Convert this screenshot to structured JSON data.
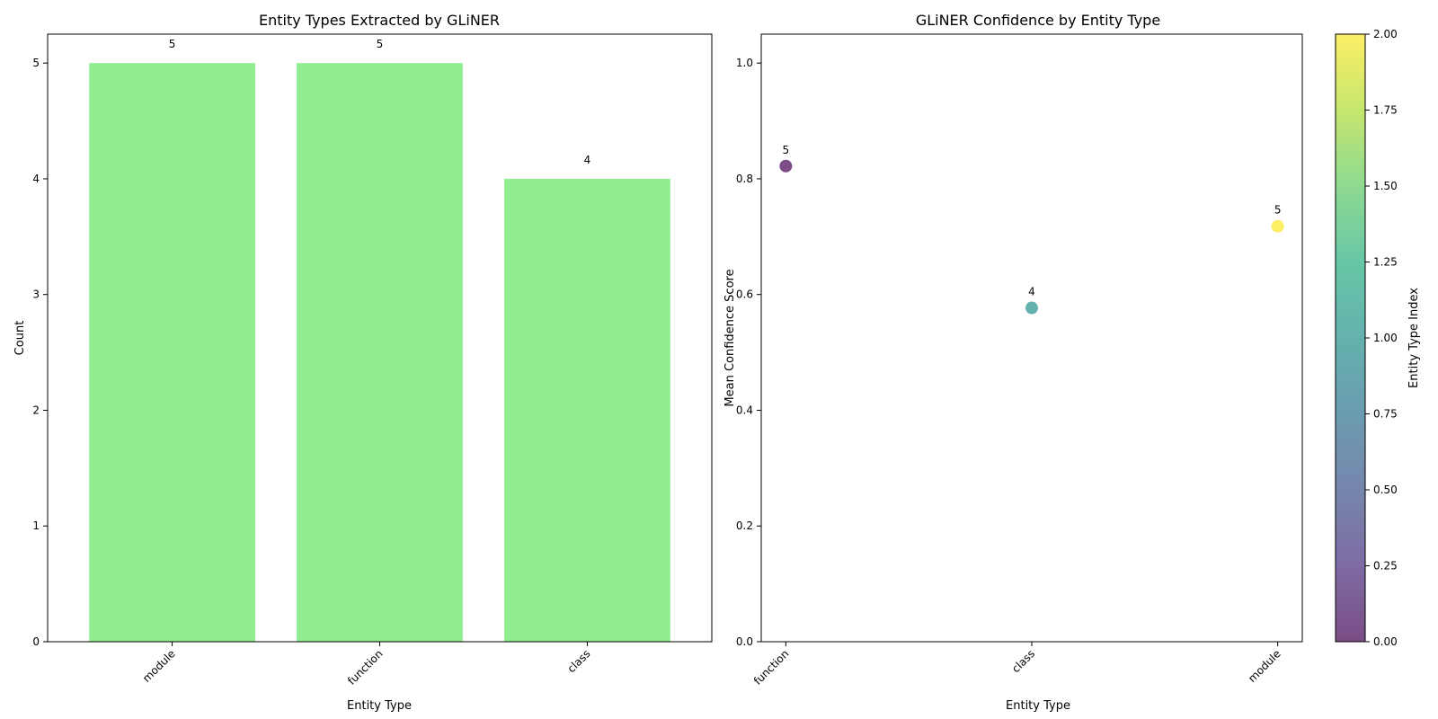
{
  "chart_data": [
    {
      "type": "bar",
      "title": "Entity Types Extracted by GLiNER",
      "xlabel": "Entity Type",
      "ylabel": "Count",
      "categories": [
        "module",
        "function",
        "class"
      ],
      "values": [
        5,
        5,
        4
      ],
      "data_labels": [
        "5",
        "5",
        "4"
      ],
      "ylim": [
        0,
        5.25
      ],
      "yticks": [
        0,
        1,
        2,
        3,
        4,
        5
      ],
      "bar_color": "#90ee90",
      "grid": false,
      "xtick_rotation": 45
    },
    {
      "type": "scatter",
      "title": "GLiNER Confidence by Entity Type",
      "xlabel": "Entity Type",
      "ylabel": "Mean Confidence Score",
      "categories": [
        "function",
        "class",
        "module"
      ],
      "values": [
        0.822,
        0.577,
        0.718
      ],
      "point_labels": [
        "5",
        "4",
        "5"
      ],
      "color_index": [
        0,
        1,
        2
      ],
      "colors": [
        "#440154",
        "#21918c",
        "#fde725"
      ],
      "ylim": [
        0,
        1.05
      ],
      "yticks": [
        "0.0",
        "0.2",
        "0.4",
        "0.6",
        "0.8",
        "1.0"
      ],
      "grid": false,
      "xtick_rotation": 45,
      "colorbar": {
        "label": "Entity Type Index",
        "range": [
          0,
          2
        ],
        "ticks": [
          "0.00",
          "0.25",
          "0.50",
          "0.75",
          "1.00",
          "1.25",
          "1.50",
          "1.75",
          "2.00"
        ],
        "colormap": "viridis"
      }
    }
  ]
}
